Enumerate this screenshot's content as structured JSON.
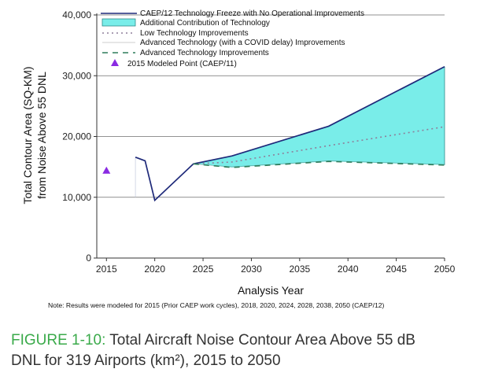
{
  "chart_data": {
    "type": "line",
    "title": "",
    "xlabel": "Analysis Year",
    "ylabel_line1": "Total Contour Area (SQ-KM)",
    "ylabel_line2": "from Noise Above 55 DNL",
    "xlim": [
      2014,
      2050
    ],
    "ylim": [
      0,
      40000
    ],
    "x_ticks": [
      2015,
      2020,
      2025,
      2030,
      2035,
      2040,
      2045,
      2050
    ],
    "x_tick_labels": [
      "2015",
      "2020",
      "2025",
      "2030",
      "2035",
      "2040",
      "2045",
      "2050"
    ],
    "y_ticks": [
      0,
      10000,
      20000,
      30000,
      40000
    ],
    "y_tick_labels": [
      "0",
      "10,000",
      "20,000",
      "30,000",
      "40,000"
    ],
    "grid": "horizontal",
    "legend_position": "top-left",
    "series": [
      {
        "name": "CAEP/12 Technology Freeze with No Operational Improvements",
        "style": "solid",
        "color": "#1f2a7a",
        "x": [
          2018,
          2019,
          2020,
          2024,
          2028,
          2038,
          2050
        ],
        "y": [
          16600,
          16000,
          9500,
          15500,
          16800,
          21700,
          31500
        ]
      },
      {
        "name": "Low Technology Improvements",
        "style": "dotted",
        "color": "#8e7f9a",
        "x": [
          2024,
          2028,
          2038,
          2050
        ],
        "y": [
          15500,
          15800,
          18500,
          21600
        ]
      },
      {
        "name": "Advanced Technology (with a COVID delay) Improvements",
        "style": "solid",
        "color": "#3a3a3a",
        "x": [
          2024,
          2028,
          2038,
          2050
        ],
        "y": [
          15500,
          15000,
          16000,
          15400
        ]
      },
      {
        "name": "Advanced Technology Improvements",
        "style": "dashed",
        "color": "#2e7d5b",
        "x": [
          2024,
          2028,
          2038,
          2050
        ],
        "y": [
          15500,
          14900,
          15900,
          15300
        ]
      }
    ],
    "area": {
      "name": "Additional Contribution of Technology",
      "color": "#79ede9",
      "edge_color": "#2e8a8a"
    },
    "points": [
      {
        "name": "2015 Modeled Point (CAEP/11)",
        "color": "#8a2be2",
        "x": 2015,
        "y": 14400
      }
    ]
  },
  "note": "Note: Results were modeled for 2015 (Prior CAEP work cycles), 2018, 2020, 2024, 2028, 2038, 2050 (CAEP/12)",
  "caption": {
    "label": "FIGURE 1-10:",
    "text_line1": " Total Aircraft Noise Contour Area Above 55 dB",
    "text_line2": "DNL for 319 Airports (km²), 2015 to 2050"
  }
}
